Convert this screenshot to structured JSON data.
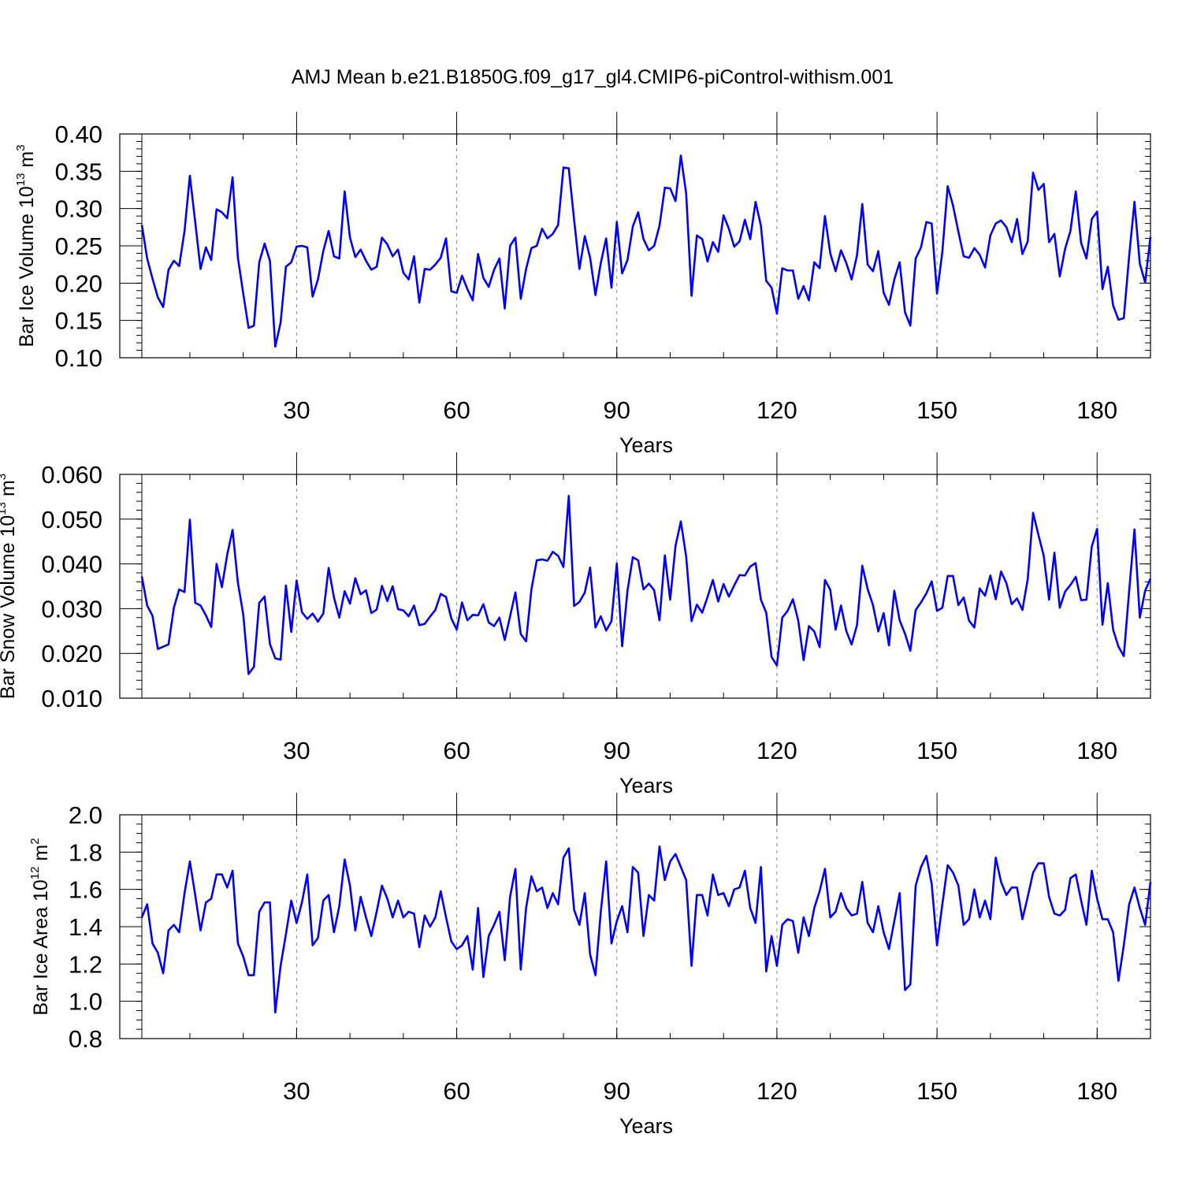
{
  "chart_data": {
    "title": "AMJ Mean b.e21.B1850G.f09_g17_gl4.CMIP6-piControl-withism.001",
    "type": "line",
    "line_color": "#0000ff",
    "grid_color": "#888888",
    "x_start_year": 1,
    "x_end_year": 190,
    "panels": [
      {
        "type": "line",
        "ylabel_prefix": "Bar Ice Volume 10",
        "ylabel_exp": "13",
        "ylabel_unit": " m",
        "ylabel_unit_exp": "3",
        "xlabel": "Years",
        "ylim": [
          0.1,
          0.4
        ],
        "yticks": [
          "0.10",
          "0.15",
          "0.20",
          "0.25",
          "0.30",
          "0.35",
          "0.40"
        ],
        "ytick_values": [
          0.1,
          0.15,
          0.2,
          0.25,
          0.3,
          0.35,
          0.4
        ],
        "yminor_step": 0.01,
        "xticks": [
          30,
          60,
          90,
          120,
          150,
          180
        ],
        "xtick_labels": [
          "30",
          "60",
          "90",
          "120",
          "150",
          "180"
        ],
        "xminor_step": 10,
        "values": [
          0.278,
          0.233,
          0.206,
          0.181,
          0.168,
          0.218,
          0.23,
          0.223,
          0.27,
          0.344,
          0.282,
          0.219,
          0.248,
          0.231,
          0.299,
          0.295,
          0.287,
          0.342,
          0.234,
          0.186,
          0.14,
          0.143,
          0.228,
          0.253,
          0.23,
          0.115,
          0.147,
          0.222,
          0.228,
          0.249,
          0.25,
          0.248,
          0.182,
          0.205,
          0.243,
          0.27,
          0.236,
          0.233,
          0.323,
          0.261,
          0.235,
          0.245,
          0.23,
          0.218,
          0.222,
          0.261,
          0.252,
          0.236,
          0.245,
          0.214,
          0.205,
          0.236,
          0.174,
          0.219,
          0.218,
          0.225,
          0.234,
          0.26,
          0.189,
          0.187,
          0.21,
          0.192,
          0.177,
          0.239,
          0.207,
          0.195,
          0.218,
          0.233,
          0.166,
          0.25,
          0.261,
          0.179,
          0.219,
          0.247,
          0.25,
          0.273,
          0.26,
          0.266,
          0.278,
          0.355,
          0.354,
          0.285,
          0.219,
          0.263,
          0.234,
          0.184,
          0.227,
          0.26,
          0.194,
          0.282,
          0.213,
          0.231,
          0.276,
          0.295,
          0.259,
          0.244,
          0.25,
          0.277,
          0.328,
          0.327,
          0.31,
          0.371,
          0.32,
          0.183,
          0.264,
          0.259,
          0.229,
          0.255,
          0.242,
          0.291,
          0.273,
          0.249,
          0.256,
          0.285,
          0.259,
          0.309,
          0.277,
          0.203,
          0.194,
          0.159,
          0.22,
          0.217,
          0.217,
          0.179,
          0.196,
          0.177,
          0.228,
          0.22,
          0.29,
          0.24,
          0.216,
          0.244,
          0.227,
          0.205,
          0.237,
          0.306,
          0.225,
          0.216,
          0.243,
          0.187,
          0.171,
          0.205,
          0.228,
          0.161,
          0.143,
          0.233,
          0.248,
          0.282,
          0.28,
          0.186,
          0.242,
          0.33,
          0.304,
          0.269,
          0.236,
          0.234,
          0.247,
          0.238,
          0.221,
          0.264,
          0.28,
          0.284,
          0.275,
          0.255,
          0.286,
          0.239,
          0.256,
          0.348,
          0.325,
          0.333,
          0.255,
          0.266,
          0.209,
          0.246,
          0.27,
          0.323,
          0.254,
          0.233,
          0.286,
          0.296,
          0.192,
          0.222,
          0.17,
          0.151,
          0.153,
          0.236,
          0.309,
          0.226,
          0.201,
          0.262
        ]
      },
      {
        "type": "line",
        "ylabel_prefix": "Bar Snow Volume 10",
        "ylabel_exp": "13",
        "ylabel_unit": " m",
        "ylabel_unit_exp": "3",
        "xlabel": "Years",
        "ylim": [
          0.01,
          0.06
        ],
        "yticks": [
          "0.010",
          "0.020",
          "0.030",
          "0.040",
          "0.050",
          "0.060"
        ],
        "ytick_values": [
          0.01,
          0.02,
          0.03,
          0.04,
          0.05,
          0.06
        ],
        "yminor_step": 0.002,
        "xticks": [
          30,
          60,
          90,
          120,
          150,
          180
        ],
        "xtick_labels": [
          "30",
          "60",
          "90",
          "120",
          "150",
          "180"
        ],
        "xminor_step": 10,
        "values": [
          0.0372,
          0.0307,
          0.0284,
          0.021,
          0.0215,
          0.022,
          0.0302,
          0.0343,
          0.0337,
          0.0499,
          0.0313,
          0.0307,
          0.0285,
          0.0259,
          0.04,
          0.0348,
          0.0421,
          0.0476,
          0.0358,
          0.0287,
          0.0154,
          0.017,
          0.0313,
          0.0327,
          0.0221,
          0.0189,
          0.0186,
          0.0352,
          0.0248,
          0.0363,
          0.0292,
          0.0277,
          0.0289,
          0.0271,
          0.0289,
          0.0391,
          0.0325,
          0.028,
          0.0339,
          0.0311,
          0.0368,
          0.0332,
          0.0341,
          0.029,
          0.0298,
          0.0351,
          0.0317,
          0.035,
          0.0299,
          0.0296,
          0.0283,
          0.0307,
          0.0263,
          0.0266,
          0.0282,
          0.0297,
          0.0333,
          0.0326,
          0.0278,
          0.0253,
          0.0314,
          0.0274,
          0.0286,
          0.0285,
          0.031,
          0.0269,
          0.0261,
          0.028,
          0.023,
          0.0283,
          0.0336,
          0.0243,
          0.0227,
          0.0343,
          0.0408,
          0.041,
          0.0407,
          0.0427,
          0.0418,
          0.0393,
          0.0552,
          0.0306,
          0.0315,
          0.0336,
          0.0392,
          0.0258,
          0.0283,
          0.0251,
          0.0272,
          0.0401,
          0.0216,
          0.034,
          0.0415,
          0.0408,
          0.0343,
          0.0356,
          0.0341,
          0.0274,
          0.0419,
          0.032,
          0.044,
          0.0495,
          0.0416,
          0.0272,
          0.0309,
          0.0291,
          0.0326,
          0.0364,
          0.0316,
          0.0355,
          0.0327,
          0.0352,
          0.0375,
          0.0374,
          0.0394,
          0.0402,
          0.032,
          0.0291,
          0.0192,
          0.0173,
          0.028,
          0.0295,
          0.0321,
          0.0273,
          0.0185,
          0.0261,
          0.0249,
          0.0214,
          0.0364,
          0.0342,
          0.0253,
          0.0307,
          0.025,
          0.022,
          0.0263,
          0.0396,
          0.0344,
          0.0308,
          0.0249,
          0.029,
          0.0218,
          0.034,
          0.0274,
          0.0244,
          0.0206,
          0.0297,
          0.0314,
          0.0334,
          0.0361,
          0.0295,
          0.0302,
          0.0373,
          0.0373,
          0.0308,
          0.0325,
          0.0273,
          0.0258,
          0.0345,
          0.0329,
          0.0374,
          0.0321,
          0.0383,
          0.0357,
          0.031,
          0.0323,
          0.0297,
          0.0366,
          0.0514,
          0.0465,
          0.0418,
          0.032,
          0.0425,
          0.0302,
          0.0338,
          0.0353,
          0.0371,
          0.0319,
          0.032,
          0.0439,
          0.0478,
          0.0264,
          0.0357,
          0.0253,
          0.0215,
          0.0194,
          0.0339,
          0.0477,
          0.028,
          0.034,
          0.0367
        ]
      },
      {
        "type": "line",
        "ylabel_prefix": "Bar Ice Area 10",
        "ylabel_exp": "12",
        "ylabel_unit": " m",
        "ylabel_unit_exp": "2",
        "xlabel": "Years",
        "ylim": [
          0.8,
          2.0
        ],
        "yticks": [
          "0.8",
          "1.0",
          "1.2",
          "1.4",
          "1.6",
          "1.8",
          "2.0"
        ],
        "ytick_values": [
          0.8,
          1.0,
          1.2,
          1.4,
          1.6,
          1.8,
          2.0
        ],
        "yminor_step": 0.05,
        "xticks": [
          30,
          60,
          90,
          120,
          150,
          180
        ],
        "xtick_labels": [
          "30",
          "60",
          "90",
          "120",
          "150",
          "180"
        ],
        "xminor_step": 10,
        "values": [
          1.45,
          1.52,
          1.31,
          1.26,
          1.15,
          1.38,
          1.41,
          1.37,
          1.58,
          1.75,
          1.57,
          1.38,
          1.53,
          1.55,
          1.68,
          1.68,
          1.61,
          1.7,
          1.31,
          1.24,
          1.14,
          1.14,
          1.48,
          1.53,
          1.53,
          0.94,
          1.19,
          1.36,
          1.54,
          1.42,
          1.53,
          1.68,
          1.3,
          1.34,
          1.54,
          1.57,
          1.37,
          1.51,
          1.76,
          1.62,
          1.38,
          1.56,
          1.45,
          1.35,
          1.48,
          1.62,
          1.55,
          1.45,
          1.54,
          1.45,
          1.48,
          1.47,
          1.29,
          1.46,
          1.4,
          1.45,
          1.59,
          1.45,
          1.32,
          1.28,
          1.3,
          1.35,
          1.17,
          1.5,
          1.13,
          1.35,
          1.41,
          1.48,
          1.22,
          1.56,
          1.71,
          1.17,
          1.5,
          1.67,
          1.59,
          1.61,
          1.5,
          1.58,
          1.52,
          1.77,
          1.82,
          1.49,
          1.41,
          1.58,
          1.25,
          1.14,
          1.48,
          1.75,
          1.31,
          1.43,
          1.51,
          1.37,
          1.72,
          1.69,
          1.35,
          1.57,
          1.54,
          1.83,
          1.65,
          1.75,
          1.79,
          1.72,
          1.65,
          1.19,
          1.57,
          1.57,
          1.46,
          1.68,
          1.57,
          1.58,
          1.51,
          1.6,
          1.61,
          1.7,
          1.5,
          1.42,
          1.72,
          1.16,
          1.35,
          1.19,
          1.41,
          1.44,
          1.43,
          1.26,
          1.45,
          1.35,
          1.5,
          1.59,
          1.71,
          1.45,
          1.48,
          1.58,
          1.5,
          1.46,
          1.47,
          1.64,
          1.42,
          1.37,
          1.51,
          1.37,
          1.28,
          1.43,
          1.58,
          1.06,
          1.09,
          1.62,
          1.72,
          1.78,
          1.63,
          1.3,
          1.52,
          1.73,
          1.69,
          1.62,
          1.41,
          1.44,
          1.6,
          1.45,
          1.54,
          1.44,
          1.77,
          1.64,
          1.57,
          1.61,
          1.61,
          1.44,
          1.56,
          1.69,
          1.74,
          1.74,
          1.56,
          1.47,
          1.46,
          1.49,
          1.66,
          1.68,
          1.54,
          1.41,
          1.7,
          1.55,
          1.44,
          1.44,
          1.37,
          1.11,
          1.3,
          1.52,
          1.61,
          1.5,
          1.41,
          1.64
        ]
      }
    ]
  }
}
